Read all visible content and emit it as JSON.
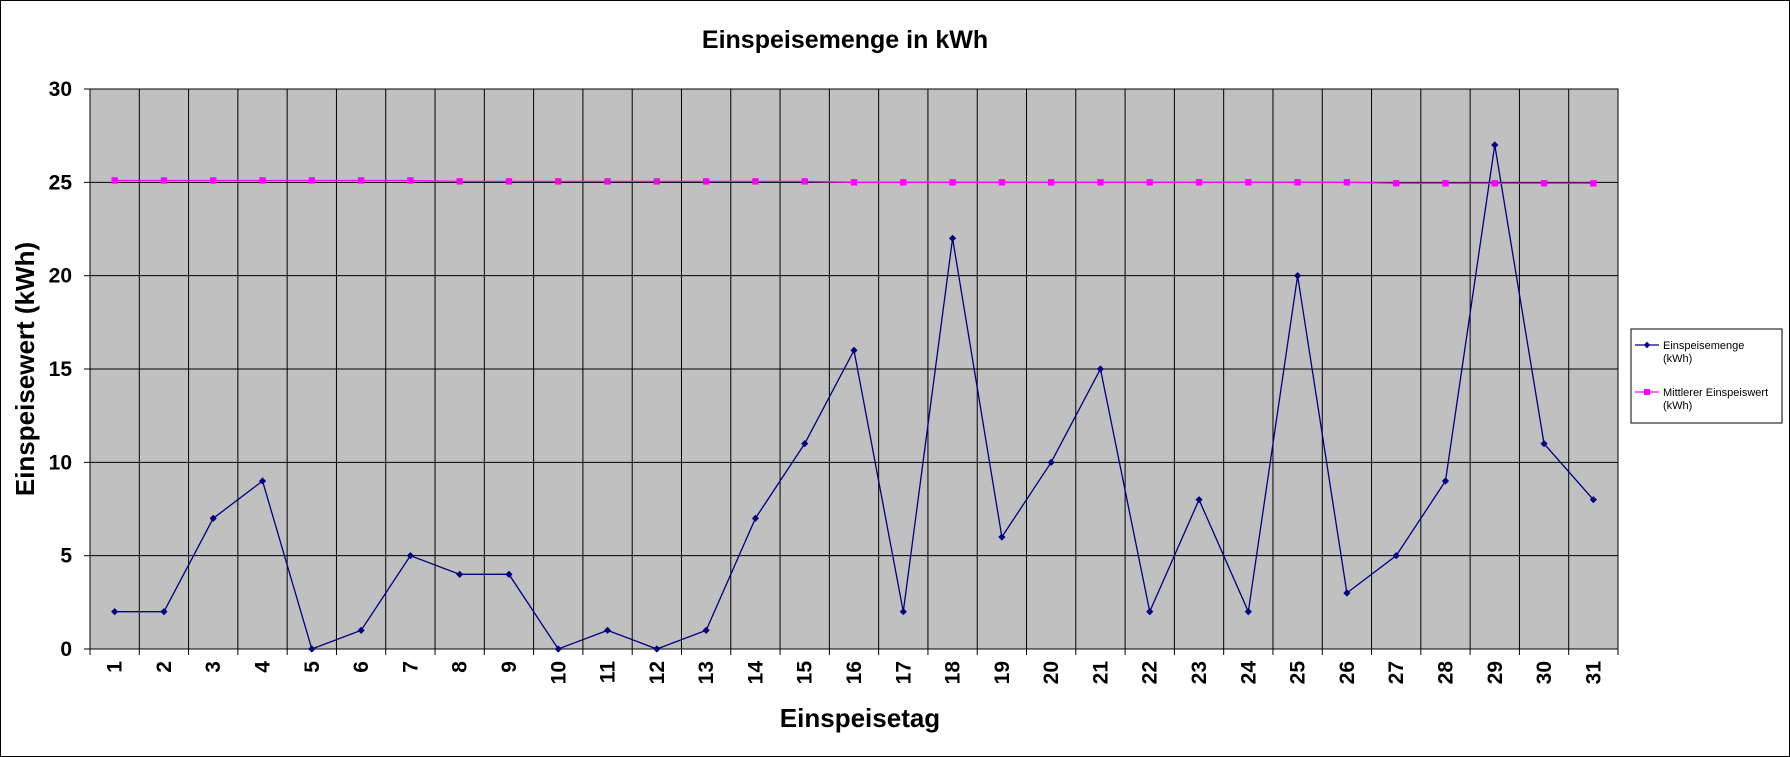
{
  "chart_data": {
    "type": "line",
    "title": "Einspeisemenge in kWh",
    "xlabel": "Einspeisetag",
    "ylabel": "Einspeisewert  (kWh)",
    "ylim": [
      0,
      30
    ],
    "yticks": [
      "0",
      "5",
      "10",
      "15",
      "20",
      "25",
      "30"
    ],
    "categories": [
      "1",
      "2",
      "3",
      "4",
      "5",
      "6",
      "7",
      "8",
      "9",
      "10",
      "11",
      "12",
      "13",
      "14",
      "15",
      "16",
      "17",
      "18",
      "19",
      "20",
      "21",
      "22",
      "23",
      "24",
      "25",
      "26",
      "27",
      "28",
      "29",
      "30",
      "31"
    ],
    "grid": true,
    "legend_position": "right",
    "series": [
      {
        "name": "Einspeisemenge (kWh)",
        "legend_lines": [
          "Einspeisemenge",
          "(kWh)"
        ],
        "marker": "diamond",
        "color": "#000080",
        "values": [
          2,
          2,
          7,
          9,
          0,
          1,
          5,
          4,
          4,
          0,
          1,
          0,
          1,
          7,
          11,
          16,
          2,
          22,
          6,
          10,
          15,
          2,
          8,
          2,
          20,
          3,
          5,
          9,
          27,
          11,
          8
        ]
      },
      {
        "name": "Mittlerer Einspeiswert (kWh)",
        "legend_lines": [
          "Mittlerer Einspeiswert",
          "(kWh)"
        ],
        "marker": "square",
        "color": "#ff00ff",
        "values": [
          25.1,
          25.1,
          25.1,
          25.1,
          25.1,
          25.1,
          25.1,
          25.05,
          25.05,
          25.05,
          25.05,
          25.05,
          25.05,
          25.05,
          25.05,
          25.0,
          25.0,
          25.0,
          25.0,
          25.0,
          25.0,
          25.0,
          25.0,
          25.0,
          25.0,
          25.0,
          24.95,
          24.95,
          24.95,
          24.95,
          24.95
        ]
      }
    ],
    "plot_background": "#c0c0c0",
    "gridline_color": "#000000"
  }
}
